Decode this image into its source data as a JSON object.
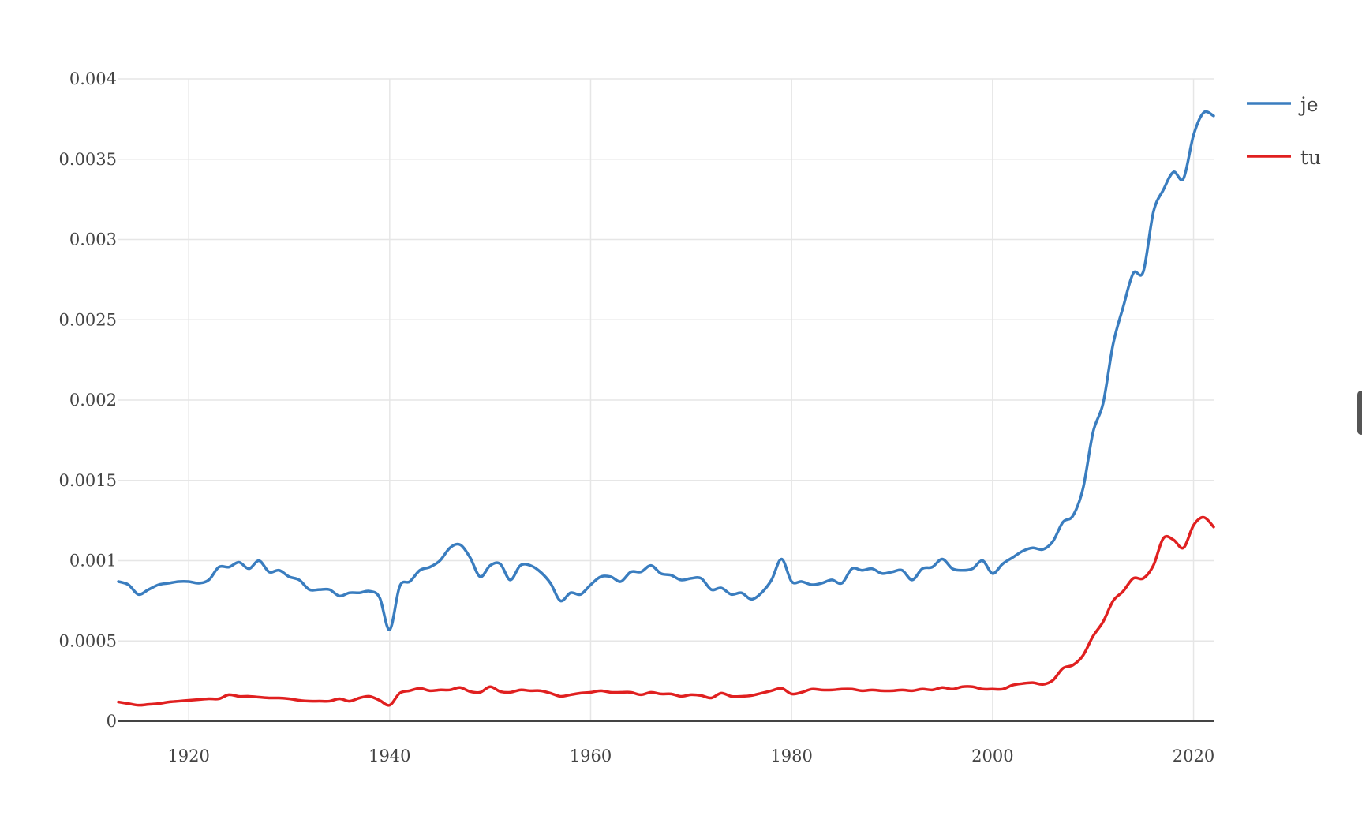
{
  "chart_data": {
    "type": "line",
    "xlim": [
      1913,
      2022
    ],
    "ylim": [
      0,
      0.004
    ],
    "x_ticks": [
      1920,
      1940,
      1960,
      1980,
      2000,
      2020
    ],
    "y_ticks": [
      0,
      0.0005,
      0.001,
      0.0015,
      0.002,
      0.0025,
      0.003,
      0.0035,
      0.004
    ],
    "y_tick_labels": [
      "0",
      "0.0005",
      "0.001",
      "0.0015",
      "0.002",
      "0.0025",
      "0.003",
      "0.0035",
      "0.004"
    ],
    "x_tick_labels": [
      "1920",
      "1940",
      "1960",
      "1980",
      "2000",
      "2020"
    ],
    "grid": true,
    "legend_position": "top-right",
    "x": [
      1913,
      1914,
      1915,
      1916,
      1917,
      1918,
      1919,
      1920,
      1921,
      1922,
      1923,
      1924,
      1925,
      1926,
      1927,
      1928,
      1929,
      1930,
      1931,
      1932,
      1933,
      1934,
      1935,
      1936,
      1937,
      1938,
      1939,
      1940,
      1941,
      1942,
      1943,
      1944,
      1945,
      1946,
      1947,
      1948,
      1949,
      1950,
      1951,
      1952,
      1953,
      1954,
      1955,
      1956,
      1957,
      1958,
      1959,
      1960,
      1961,
      1962,
      1963,
      1964,
      1965,
      1966,
      1967,
      1968,
      1969,
      1970,
      1971,
      1972,
      1973,
      1974,
      1975,
      1976,
      1977,
      1978,
      1979,
      1980,
      1981,
      1982,
      1983,
      1984,
      1985,
      1986,
      1987,
      1988,
      1989,
      1990,
      1991,
      1992,
      1993,
      1994,
      1995,
      1996,
      1997,
      1998,
      1999,
      2000,
      2001,
      2002,
      2003,
      2004,
      2005,
      2006,
      2007,
      2008,
      2009,
      2010,
      2011,
      2012,
      2013,
      2014,
      2015,
      2016,
      2017,
      2018,
      2019,
      2020,
      2021,
      2022
    ],
    "series": [
      {
        "name": "je",
        "color": "#3a7dbf",
        "values": [
          0.00087,
          0.00085,
          0.00079,
          0.00082,
          0.00085,
          0.00086,
          0.00087,
          0.00087,
          0.00086,
          0.00088,
          0.00096,
          0.00096,
          0.00099,
          0.00095,
          0.001,
          0.00093,
          0.00094,
          0.0009,
          0.00088,
          0.00082,
          0.00082,
          0.00082,
          0.00078,
          0.0008,
          0.0008,
          0.00081,
          0.00077,
          0.00057,
          0.00084,
          0.00087,
          0.00094,
          0.00096,
          0.001,
          0.00108,
          0.0011,
          0.00102,
          0.0009,
          0.00097,
          0.00098,
          0.00088,
          0.00097,
          0.00097,
          0.00093,
          0.00086,
          0.00075,
          0.0008,
          0.00079,
          0.00085,
          0.0009,
          0.0009,
          0.00087,
          0.00093,
          0.00093,
          0.00097,
          0.00092,
          0.00091,
          0.00088,
          0.00089,
          0.00089,
          0.00082,
          0.00083,
          0.00079,
          0.0008,
          0.00076,
          0.0008,
          0.00088,
          0.00101,
          0.00087,
          0.00087,
          0.00085,
          0.00086,
          0.00088,
          0.00086,
          0.00095,
          0.00094,
          0.00095,
          0.00092,
          0.00093,
          0.00094,
          0.00088,
          0.00095,
          0.00096,
          0.00101,
          0.00095,
          0.00094,
          0.00095,
          0.001,
          0.00092,
          0.00098,
          0.00102,
          0.00106,
          0.00108,
          0.00107,
          0.00112,
          0.00124,
          0.00128,
          0.00145,
          0.0018,
          0.00198,
          0.00235,
          0.00258,
          0.00279,
          0.0028,
          0.00317,
          0.00331,
          0.00342,
          0.00338,
          0.00365,
          0.00379,
          0.00377
        ]
      },
      {
        "name": "tu",
        "color": "#e02020",
        "values": [
          0.00012,
          0.00011,
          0.0001,
          0.000105,
          0.00011,
          0.00012,
          0.000125,
          0.00013,
          0.000135,
          0.00014,
          0.00014,
          0.000165,
          0.000155,
          0.000155,
          0.00015,
          0.000145,
          0.000145,
          0.00014,
          0.00013,
          0.000125,
          0.000125,
          0.000125,
          0.00014,
          0.000125,
          0.000145,
          0.000155,
          0.00013,
          0.0001,
          0.000175,
          0.00019,
          0.000205,
          0.00019,
          0.000195,
          0.000195,
          0.00021,
          0.000185,
          0.00018,
          0.000215,
          0.000185,
          0.00018,
          0.000195,
          0.00019,
          0.00019,
          0.000175,
          0.000155,
          0.000165,
          0.000175,
          0.00018,
          0.00019,
          0.00018,
          0.00018,
          0.00018,
          0.000165,
          0.00018,
          0.00017,
          0.00017,
          0.000155,
          0.000165,
          0.00016,
          0.000145,
          0.000175,
          0.000155,
          0.000155,
          0.00016,
          0.000175,
          0.00019,
          0.000205,
          0.00017,
          0.00018,
          0.0002,
          0.000195,
          0.000195,
          0.0002,
          0.0002,
          0.00019,
          0.000195,
          0.00019,
          0.00019,
          0.000195,
          0.00019,
          0.0002,
          0.000195,
          0.00021,
          0.0002,
          0.000215,
          0.000215,
          0.0002,
          0.0002,
          0.0002,
          0.000225,
          0.000235,
          0.00024,
          0.00023,
          0.000255,
          0.00033,
          0.00035,
          0.00041,
          0.00053,
          0.00062,
          0.00075,
          0.00081,
          0.00089,
          0.00089,
          0.00097,
          0.00114,
          0.00113,
          0.00108,
          0.00122,
          0.00127,
          0.00121
        ]
      }
    ]
  }
}
